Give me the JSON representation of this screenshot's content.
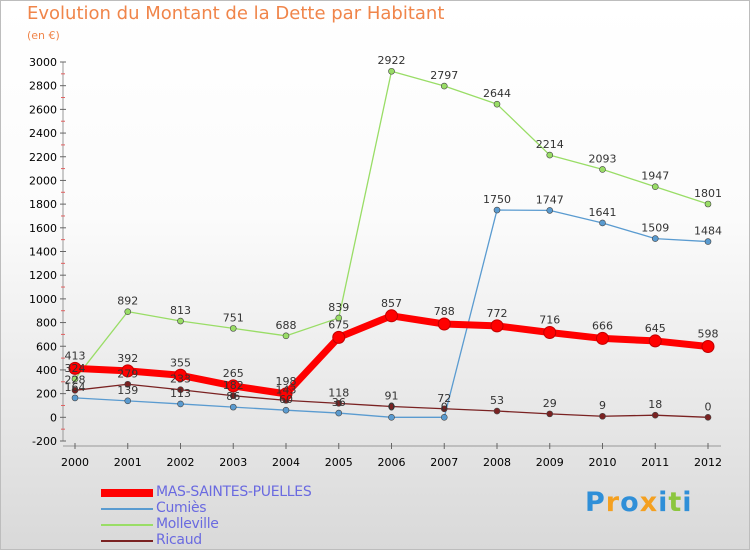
{
  "chart_data": {
    "type": "line",
    "title": "Evolution du Montant de la Dette par Habitant",
    "subtitle": "(en €)",
    "x": [
      "2000",
      "2001",
      "2002",
      "2003",
      "2004",
      "2005",
      "2006",
      "2007",
      "2008",
      "2009",
      "2010",
      "2011",
      "2012"
    ],
    "ylim": [
      -200,
      3000
    ],
    "yticks": [
      -200,
      0,
      200,
      400,
      600,
      800,
      1000,
      1200,
      1400,
      1600,
      1800,
      2000,
      2200,
      2400,
      2600,
      2800,
      3000
    ],
    "grid": false,
    "legend_position": "bottom-left",
    "series": [
      {
        "name": "MAS-SAINTES-PUELLES",
        "color": "#ff0000",
        "values": [
          413,
          392,
          355,
          265,
          198,
          675,
          857,
          788,
          772,
          716,
          666,
          645,
          598
        ]
      },
      {
        "name": "Cumiès",
        "color": "#5a9bd0",
        "values": [
          164,
          139,
          113,
          86,
          60,
          36,
          0,
          0,
          1750,
          1747,
          1641,
          1509,
          1484
        ]
      },
      {
        "name": "Molleville",
        "color": "#99dd66",
        "values": [
          324,
          892,
          813,
          751,
          688,
          839,
          2922,
          2797,
          2644,
          2214,
          2093,
          1947,
          1801
        ]
      },
      {
        "name": "Ricaud",
        "color": "#7a2222",
        "values": [
          228,
          279,
          233,
          182,
          143,
          118,
          91,
          72,
          53,
          29,
          9,
          18,
          0
        ]
      }
    ]
  },
  "logo": {
    "letters": [
      "P",
      "r",
      "o",
      "x",
      "i",
      "t",
      "i"
    ],
    "colors": [
      "#2f8fd8",
      "#f4a020",
      "#2f8fd8",
      "#f4a020",
      "#2f8fd8",
      "#8cc63f",
      "#2f8fd8"
    ]
  }
}
